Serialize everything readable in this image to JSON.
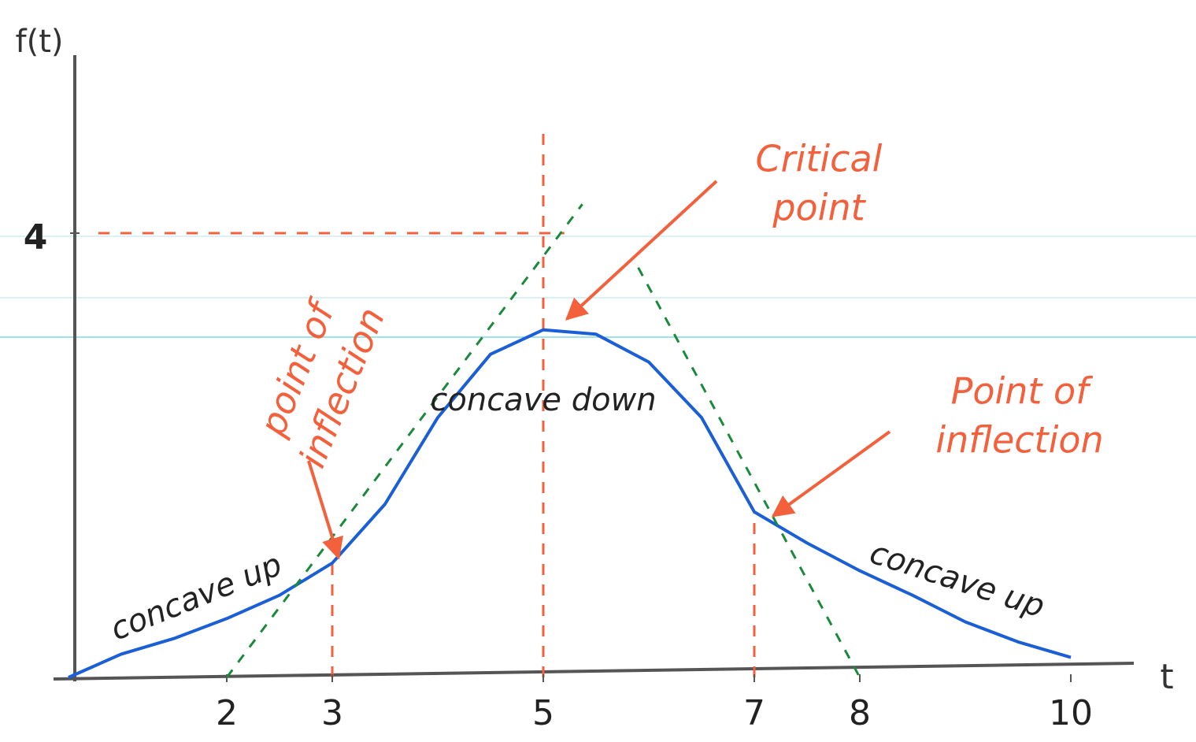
{
  "chart_data": {
    "type": "line",
    "x_label": "t",
    "y_label": "f(t)",
    "xlim": [
      0.5,
      10.5
    ],
    "ylim": [
      0,
      5.5
    ],
    "xticks": [
      2,
      3,
      5,
      7,
      8,
      10
    ],
    "yticks": [
      4
    ],
    "grid": false,
    "series": [
      {
        "color": "#1a5fd6",
        "x": [
          0.5,
          1,
          1.5,
          2,
          2.5,
          3,
          3.5,
          4,
          4.5,
          5,
          5.5,
          6,
          6.5,
          7,
          7.5,
          8,
          8.5,
          9,
          9.5,
          10
        ],
        "values": [
          0,
          0.21,
          0.35,
          0.53,
          0.74,
          1.03,
          1.56,
          2.34,
          2.91,
          3.13,
          3.09,
          2.84,
          2.34,
          1.49,
          1.21,
          0.96,
          0.74,
          0.5,
          0.32,
          0.18
        ]
      },
      {
        "color": "#1a8a3a",
        "dashed": true,
        "x": [
          2,
          5.37
        ],
        "values": [
          0,
          4.26
        ]
      },
      {
        "color": "#1a8a3a",
        "dashed": true,
        "x": [
          5.9,
          8
        ],
        "values": [
          3.69,
          0
        ]
      }
    ],
    "reference_color": "#f2603c",
    "vlines": [
      {
        "x": 3,
        "top": 1.03
      },
      {
        "x": 5,
        "top": 4.96
      },
      {
        "x": 7,
        "top": 1.49
      }
    ],
    "hline": {
      "y": 4,
      "x_end": 5.2
    },
    "region_labels": [
      "concave up",
      "concave down",
      "concave up"
    ],
    "annotations": [
      {
        "lines": [
          "Critical",
          "point"
        ]
      },
      {
        "lines": [
          "point of",
          "inflection"
        ]
      },
      {
        "lines": [
          "Point of",
          "inflection"
        ]
      }
    ]
  }
}
